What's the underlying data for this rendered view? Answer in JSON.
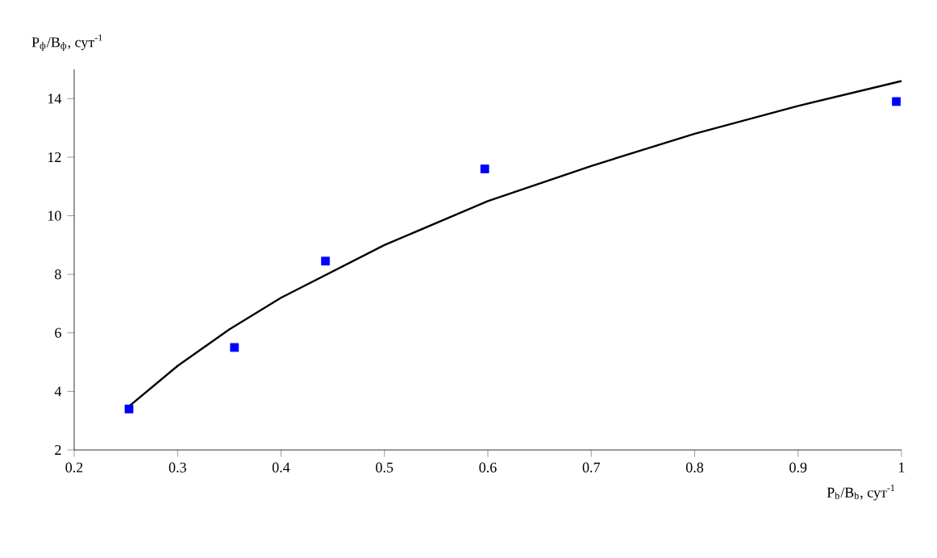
{
  "chart_data": {
    "type": "scatter",
    "xlabel": "P$_{b}$/B$_{b}$, сут$^{-1}$",
    "ylabel": "P$_{ф}$/B$_{ф}$, сут$^{-1}$",
    "xlim": [
      0.2,
      1
    ],
    "ylim": [
      2,
      15
    ],
    "xticks": [
      0.2,
      0.3,
      0.4,
      0.5,
      0.6,
      0.7,
      0.8,
      0.9,
      1
    ],
    "yticks": [
      2,
      4,
      6,
      8,
      10,
      12,
      14
    ],
    "grid": false,
    "series": [
      {
        "marker": "square",
        "color": "#0000ff",
        "x": [
          0.253,
          0.355,
          0.443,
          0.597,
          0.995
        ],
        "values": [
          3.4,
          5.5,
          8.45,
          11.6,
          13.9
        ]
      },
      {
        "type": "line",
        "color": "#000000",
        "x": [
          0.25,
          0.3,
          0.35,
          0.4,
          0.5,
          0.6,
          0.7,
          0.8,
          0.9,
          1.0
        ],
        "values": [
          3.4,
          4.87,
          6.12,
          7.2,
          9.0,
          10.5,
          11.7,
          12.8,
          13.75,
          14.6
        ]
      }
    ]
  }
}
